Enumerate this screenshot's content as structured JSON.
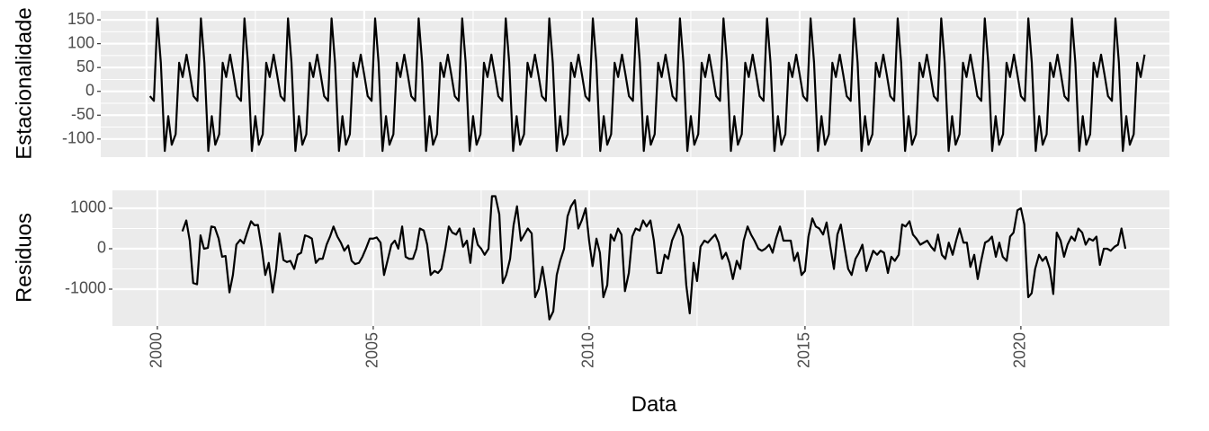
{
  "chart_data": [
    {
      "type": "line",
      "ylabel": "Estacionalidade",
      "color": "#000000",
      "grid": true,
      "xlim": [
        1998.95,
        2023.49
      ],
      "xticks": [
        2000,
        2005,
        2010,
        2015,
        2020
      ],
      "ylim": [
        -138,
        169
      ],
      "yticks": [
        -100,
        -50,
        0,
        50,
        100,
        150
      ],
      "x": [
        2000.08,
        2000.17,
        2000.25,
        2000.33,
        2000.42,
        2000.5,
        2000.58,
        2000.67,
        2000.75,
        2000.83,
        2000.92,
        2001,
        2001.08,
        2001.17,
        2001.25,
        2001.33,
        2001.42,
        2001.5,
        2001.58,
        2001.67,
        2001.75,
        2001.83,
        2001.92,
        2002,
        2002.08,
        2002.17,
        2002.25,
        2002.33,
        2002.42,
        2002.5,
        2002.58,
        2002.67,
        2002.75,
        2002.83,
        2002.92,
        2003,
        2003.08,
        2003.17,
        2003.25,
        2003.33,
        2003.42,
        2003.5,
        2003.58,
        2003.67,
        2003.75,
        2003.83,
        2003.92,
        2004,
        2004.08,
        2004.17,
        2004.25,
        2004.33,
        2004.42,
        2004.5,
        2004.58,
        2004.67,
        2004.75,
        2004.83,
        2004.92,
        2005,
        2005.08,
        2005.17,
        2005.25,
        2005.33,
        2005.42,
        2005.5,
        2005.58,
        2005.67,
        2005.75,
        2005.83,
        2005.92,
        2006,
        2006.08,
        2006.17,
        2006.25,
        2006.33,
        2006.42,
        2006.5,
        2006.58,
        2006.67,
        2006.75,
        2006.83,
        2006.92,
        2007,
        2007.08,
        2007.17,
        2007.25,
        2007.33,
        2007.42,
        2007.5,
        2007.58,
        2007.67,
        2007.75,
        2007.83,
        2007.92,
        2008,
        2008.08,
        2008.17,
        2008.25,
        2008.33,
        2008.42,
        2008.5,
        2008.58,
        2008.67,
        2008.75,
        2008.83,
        2008.92,
        2009,
        2009.08,
        2009.17,
        2009.25,
        2009.33,
        2009.42,
        2009.5,
        2009.58,
        2009.67,
        2009.75,
        2009.83,
        2009.92,
        2010,
        2010.08,
        2010.17,
        2010.25,
        2010.33,
        2010.42,
        2010.5,
        2010.58,
        2010.67,
        2010.75,
        2010.83,
        2010.92,
        2011,
        2011.08,
        2011.17,
        2011.25,
        2011.33,
        2011.42,
        2011.5,
        2011.58,
        2011.67,
        2011.75,
        2011.83,
        2011.92,
        2012,
        2012.08,
        2012.17,
        2012.25,
        2012.33,
        2012.42,
        2012.5,
        2012.58,
        2012.67,
        2012.75,
        2012.83,
        2012.92,
        2013,
        2013.08,
        2013.17,
        2013.25,
        2013.33,
        2013.42,
        2013.5,
        2013.58,
        2013.67,
        2013.75,
        2013.83,
        2013.92,
        2014,
        2014.08,
        2014.17,
        2014.25,
        2014.33,
        2014.42,
        2014.5,
        2014.58,
        2014.67,
        2014.75,
        2014.83,
        2014.92,
        2015,
        2015.08,
        2015.17,
        2015.25,
        2015.33,
        2015.42,
        2015.5,
        2015.58,
        2015.67,
        2015.75,
        2015.83,
        2015.92,
        2016,
        2016.08,
        2016.17,
        2016.25,
        2016.33,
        2016.42,
        2016.5,
        2016.58,
        2016.67,
        2016.75,
        2016.83,
        2016.92,
        2017,
        2017.08,
        2017.17,
        2017.25,
        2017.33,
        2017.42,
        2017.5,
        2017.58,
        2017.67,
        2017.75,
        2017.83,
        2017.92,
        2018,
        2018.08,
        2018.17,
        2018.25,
        2018.33,
        2018.42,
        2018.5,
        2018.58,
        2018.67,
        2018.75,
        2018.83,
        2018.92,
        2019,
        2019.08,
        2019.17,
        2019.25,
        2019.33,
        2019.42,
        2019.5,
        2019.58,
        2019.67,
        2019.75,
        2019.83,
        2019.92,
        2020,
        2020.08,
        2020.17,
        2020.25,
        2020.33,
        2020.42,
        2020.5,
        2020.58,
        2020.67,
        2020.75,
        2020.83,
        2020.92,
        2021,
        2021.08,
        2021.17,
        2021.25,
        2021.33,
        2021.42,
        2021.5,
        2021.58,
        2021.67,
        2021.75,
        2021.83,
        2021.92,
        2022,
        2022.08,
        2022.17,
        2022.25,
        2022.33,
        2022.42,
        2022.5,
        2022.58,
        2022.67,
        2022.75,
        2022.83,
        2022.92
      ],
      "values": [
        -10,
        -20,
        153,
        60,
        -125,
        -52,
        -112,
        -90,
        60,
        30,
        77,
        35,
        -10,
        -20,
        153,
        60,
        -125,
        -52,
        -112,
        -90,
        60,
        30,
        77,
        35,
        -10,
        -20,
        153,
        60,
        -125,
        -52,
        -112,
        -90,
        60,
        30,
        77,
        35,
        -10,
        -20,
        153,
        60,
        -125,
        -52,
        -112,
        -90,
        60,
        30,
        77,
        35,
        -10,
        -20,
        153,
        60,
        -125,
        -52,
        -112,
        -90,
        60,
        30,
        77,
        35,
        -10,
        -20,
        153,
        60,
        -125,
        -52,
        -112,
        -90,
        60,
        30,
        77,
        35,
        -10,
        -20,
        153,
        60,
        -125,
        -52,
        -112,
        -90,
        60,
        30,
        77,
        35,
        -10,
        -20,
        153,
        60,
        -125,
        -52,
        -112,
        -90,
        60,
        30,
        77,
        35,
        -10,
        -20,
        153,
        60,
        -125,
        -52,
        -112,
        -90,
        60,
        30,
        77,
        35,
        -10,
        -20,
        153,
        60,
        -125,
        -52,
        -112,
        -90,
        60,
        30,
        77,
        35,
        -10,
        -20,
        153,
        60,
        -125,
        -52,
        -112,
        -90,
        60,
        30,
        77,
        35,
        -10,
        -20,
        153,
        60,
        -125,
        -52,
        -112,
        -90,
        60,
        30,
        77,
        35,
        -10,
        -20,
        153,
        60,
        -125,
        -52,
        -112,
        -90,
        60,
        30,
        77,
        35,
        -10,
        -20,
        153,
        60,
        -125,
        -52,
        -112,
        -90,
        60,
        30,
        77,
        35,
        -10,
        -20,
        153,
        60,
        -125,
        -52,
        -112,
        -90,
        60,
        30,
        77,
        35,
        -10,
        -20,
        153,
        60,
        -125,
        -52,
        -112,
        -90,
        60,
        30,
        77,
        35,
        -10,
        -20,
        153,
        60,
        -125,
        -52,
        -112,
        -90,
        60,
        30,
        77,
        35,
        -10,
        -20,
        153,
        60,
        -125,
        -52,
        -112,
        -90,
        60,
        30,
        77,
        35,
        -10,
        -20,
        153,
        60,
        -125,
        -52,
        -112,
        -90,
        60,
        30,
        77,
        35,
        -10,
        -20,
        153,
        60,
        -125,
        -52,
        -112,
        -90,
        60,
        30,
        77,
        35,
        -10,
        -20,
        153,
        60,
        -125,
        -52,
        -112,
        -90,
        60,
        30,
        77,
        35,
        -10,
        -20,
        153,
        60,
        -125,
        -52,
        -112,
        -90,
        60,
        30,
        77,
        35,
        -10,
        -20,
        153,
        60,
        -125,
        -52,
        -112,
        -90,
        60,
        30,
        77
      ]
    },
    {
      "type": "line",
      "ylabel": "Residuos",
      "xlabel": "Data",
      "color": "#000000",
      "grid": true,
      "xlim": [
        1998.96,
        2023.44
      ],
      "xticks": [
        2000,
        2005,
        2010,
        2015,
        2020
      ],
      "ylim": [
        -1911,
        1444
      ],
      "yticks": [
        -1000,
        0,
        1000
      ],
      "x": [
        2000.58,
        2000.67,
        2000.75,
        2000.83,
        2000.92,
        2001,
        2001.08,
        2001.17,
        2001.25,
        2001.33,
        2001.42,
        2001.5,
        2001.58,
        2001.67,
        2001.75,
        2001.83,
        2001.92,
        2002,
        2002.08,
        2002.17,
        2002.25,
        2002.33,
        2002.42,
        2002.5,
        2002.58,
        2002.67,
        2002.75,
        2002.83,
        2002.92,
        2003,
        2003.08,
        2003.17,
        2003.25,
        2003.33,
        2003.42,
        2003.5,
        2003.58,
        2003.67,
        2003.75,
        2003.83,
        2003.92,
        2004,
        2004.08,
        2004.17,
        2004.25,
        2004.33,
        2004.42,
        2004.5,
        2004.58,
        2004.67,
        2004.75,
        2004.83,
        2004.92,
        2005,
        2005.08,
        2005.17,
        2005.25,
        2005.33,
        2005.42,
        2005.5,
        2005.58,
        2005.67,
        2005.75,
        2005.83,
        2005.92,
        2006,
        2006.08,
        2006.17,
        2006.25,
        2006.33,
        2006.42,
        2006.5,
        2006.58,
        2006.67,
        2006.75,
        2006.83,
        2006.92,
        2007,
        2007.08,
        2007.17,
        2007.25,
        2007.33,
        2007.42,
        2007.5,
        2007.58,
        2007.67,
        2007.75,
        2007.83,
        2007.92,
        2008,
        2008.08,
        2008.17,
        2008.25,
        2008.33,
        2008.42,
        2008.5,
        2008.58,
        2008.67,
        2008.75,
        2008.83,
        2008.92,
        2009,
        2009.08,
        2009.17,
        2009.25,
        2009.33,
        2009.42,
        2009.5,
        2009.58,
        2009.67,
        2009.75,
        2009.83,
        2009.92,
        2010,
        2010.08,
        2010.17,
        2010.25,
        2010.33,
        2010.42,
        2010.5,
        2010.58,
        2010.67,
        2010.75,
        2010.83,
        2010.92,
        2011,
        2011.08,
        2011.17,
        2011.25,
        2011.33,
        2011.42,
        2011.5,
        2011.58,
        2011.67,
        2011.75,
        2011.83,
        2011.92,
        2012,
        2012.08,
        2012.17,
        2012.25,
        2012.33,
        2012.42,
        2012.5,
        2012.58,
        2012.67,
        2012.75,
        2012.83,
        2012.92,
        2013,
        2013.08,
        2013.17,
        2013.25,
        2013.33,
        2013.42,
        2013.5,
        2013.58,
        2013.67,
        2013.75,
        2013.83,
        2013.92,
        2014,
        2014.08,
        2014.17,
        2014.25,
        2014.33,
        2014.42,
        2014.5,
        2014.58,
        2014.67,
        2014.75,
        2014.83,
        2014.92,
        2015,
        2015.08,
        2015.17,
        2015.25,
        2015.33,
        2015.42,
        2015.5,
        2015.58,
        2015.67,
        2015.75,
        2015.83,
        2015.92,
        2016,
        2016.08,
        2016.17,
        2016.25,
        2016.33,
        2016.42,
        2016.5,
        2016.58,
        2016.67,
        2016.75,
        2016.83,
        2016.92,
        2017,
        2017.08,
        2017.17,
        2017.25,
        2017.33,
        2017.42,
        2017.5,
        2017.58,
        2017.67,
        2017.75,
        2017.83,
        2017.92,
        2018,
        2018.08,
        2018.17,
        2018.25,
        2018.33,
        2018.42,
        2018.5,
        2018.58,
        2018.67,
        2018.75,
        2018.83,
        2018.92,
        2019,
        2019.08,
        2019.17,
        2019.25,
        2019.33,
        2019.42,
        2019.5,
        2019.58,
        2019.67,
        2019.75,
        2019.83,
        2019.92,
        2020,
        2020.08,
        2020.17,
        2020.25,
        2020.33,
        2020.42,
        2020.5,
        2020.58,
        2020.67,
        2020.75,
        2020.83,
        2020.92,
        2021,
        2021.08,
        2021.17,
        2021.25,
        2021.33,
        2021.42,
        2021.5,
        2021.58,
        2021.67,
        2021.75,
        2021.83,
        2021.92,
        2022,
        2022.08,
        2022.17,
        2022.25,
        2022.33,
        2022.42
      ],
      "values": [
        430,
        700,
        200,
        -850,
        -880,
        330,
        0,
        20,
        550,
        530,
        250,
        -200,
        -180,
        -1080,
        -650,
        100,
        220,
        130,
        400,
        680,
        580,
        590,
        0,
        -650,
        -350,
        -1080,
        -500,
        380,
        -280,
        -330,
        -300,
        -500,
        -150,
        -100,
        330,
        300,
        250,
        -350,
        -250,
        -250,
        100,
        300,
        550,
        300,
        150,
        -50,
        80,
        -300,
        -380,
        -350,
        -200,
        0,
        250,
        250,
        280,
        150,
        -650,
        -300,
        100,
        200,
        0,
        550,
        -200,
        -250,
        -250,
        0,
        500,
        450,
        100,
        -650,
        -550,
        -600,
        -500,
        0,
        550,
        400,
        350,
        500,
        50,
        200,
        -350,
        500,
        100,
        0,
        -150,
        0,
        1300,
        1300,
        850,
        -850,
        -650,
        -250,
        580,
        1050,
        200,
        350,
        500,
        380,
        -1200,
        -1000,
        -450,
        -1000,
        -1750,
        -1550,
        -650,
        -300,
        0,
        800,
        1050,
        1200,
        500,
        700,
        1000,
        200,
        -430,
        250,
        -100,
        -1200,
        -900,
        350,
        200,
        500,
        350,
        -1050,
        -600,
        300,
        500,
        450,
        700,
        550,
        700,
        200,
        -600,
        -600,
        -150,
        -250,
        200,
        400,
        600,
        300,
        -900,
        -1600,
        -350,
        -800,
        50,
        200,
        150,
        250,
        350,
        150,
        -250,
        -100,
        -350,
        -750,
        -300,
        -500,
        200,
        550,
        350,
        200,
        0,
        -50,
        0,
        100,
        -100,
        250,
        550,
        200,
        200,
        200,
        -300,
        -100,
        -650,
        -550,
        300,
        750,
        550,
        500,
        350,
        650,
        100,
        -500,
        350,
        600,
        0,
        -500,
        -650,
        -250,
        -100,
        100,
        -550,
        -300,
        -50,
        -150,
        -50,
        -100,
        -600,
        -200,
        -300,
        -150,
        600,
        550,
        680,
        350,
        250,
        100,
        150,
        200,
        50,
        -50,
        350,
        -150,
        -250,
        150,
        -150,
        200,
        500,
        150,
        150,
        -450,
        -150,
        -750,
        -300,
        150,
        200,
        300,
        -200,
        150,
        -200,
        -300,
        300,
        400,
        950,
        1000,
        600,
        -1200,
        -1100,
        -500,
        -150,
        -300,
        -200,
        -500,
        -1120,
        400,
        200,
        -200,
        100,
        300,
        200,
        500,
        400,
        100,
        250,
        200,
        300,
        -400,
        0,
        0,
        -50,
        50,
        100,
        500,
        0
      ]
    }
  ]
}
